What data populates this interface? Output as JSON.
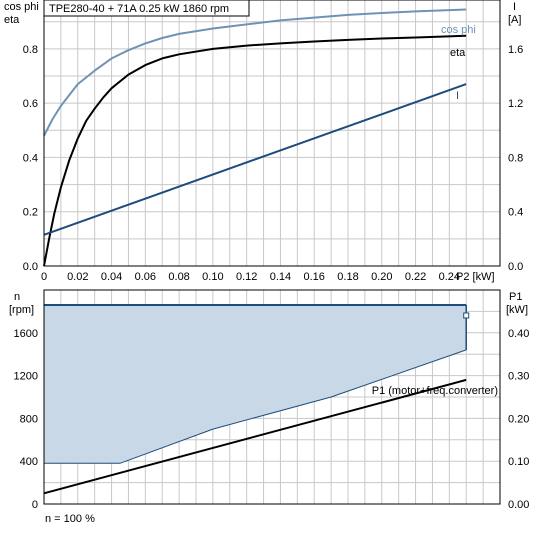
{
  "chart_data": [
    {
      "type": "line",
      "title": "TPE280-40 + 71A   0.25 kW   1860 rpm",
      "left_axis_title": [
        "cos phi",
        "eta"
      ],
      "right_axis_title": [
        "I",
        "[A]"
      ],
      "xlabel": "P2 [kW]",
      "x_ticks": [
        "0",
        "0.02",
        "0.04",
        "0.06",
        "0.08",
        "0.10",
        "0.12",
        "0.14",
        "0.16",
        "0.18",
        "0.20",
        "0.22",
        "0.24"
      ],
      "xlim": [
        0,
        0.27
      ],
      "left_ticks": [
        "0.0",
        "0.2",
        "0.4",
        "0.6",
        "0.8"
      ],
      "left_ylim": [
        0,
        0.98
      ],
      "right_ticks": [
        "0.0",
        "0.4",
        "0.8",
        "1.2",
        "1.6"
      ],
      "right_ylim": [
        0,
        1.96
      ],
      "grid": true,
      "series": [
        {
          "name": "cos phi",
          "axis": "left",
          "color": "#6f93b5",
          "x": [
            0,
            0.005,
            0.01,
            0.015,
            0.02,
            0.03,
            0.04,
            0.05,
            0.06,
            0.07,
            0.08,
            0.1,
            0.12,
            0.14,
            0.16,
            0.18,
            0.2,
            0.22,
            0.25
          ],
          "y": [
            0.48,
            0.54,
            0.59,
            0.63,
            0.67,
            0.72,
            0.765,
            0.795,
            0.82,
            0.84,
            0.855,
            0.875,
            0.89,
            0.905,
            0.915,
            0.925,
            0.932,
            0.938,
            0.945
          ]
        },
        {
          "name": "eta",
          "axis": "left",
          "color": "#000000",
          "x": [
            0,
            0.003,
            0.006,
            0.01,
            0.015,
            0.02,
            0.025,
            0.03,
            0.035,
            0.04,
            0.05,
            0.06,
            0.07,
            0.08,
            0.1,
            0.12,
            0.14,
            0.16,
            0.18,
            0.2,
            0.22,
            0.25
          ],
          "y": [
            0,
            0.1,
            0.19,
            0.29,
            0.39,
            0.47,
            0.535,
            0.58,
            0.62,
            0.655,
            0.705,
            0.74,
            0.765,
            0.78,
            0.8,
            0.812,
            0.82,
            0.827,
            0.833,
            0.838,
            0.842,
            0.848
          ]
        },
        {
          "name": "I",
          "axis": "right",
          "color": "#1d4d7d",
          "x": [
            0,
            0.25
          ],
          "y": [
            0.23,
            1.34
          ]
        }
      ]
    },
    {
      "type": "area",
      "left_axis_title": [
        "n",
        "[rpm]"
      ],
      "right_axis_title": [
        "P1",
        "[kW]"
      ],
      "x_ticks": [],
      "left_ticks": [
        "0",
        "400",
        "800",
        "1200",
        "1600"
      ],
      "left_ylim": [
        0,
        2000
      ],
      "right_ticks": [
        "0.00",
        "0.10",
        "0.20",
        "0.30",
        "0.40"
      ],
      "right_ylim": [
        0,
        0.5
      ],
      "grid": true,
      "footnote": "n = 100 %",
      "operating_area": {
        "axis": "left",
        "fill": "#c9d8e6",
        "stroke": "#1d4d7d",
        "upper": {
          "x": [
            0,
            0.25
          ],
          "y": [
            1860,
            1860
          ]
        },
        "lower": {
          "x": [
            0,
            0.045,
            0.1,
            0.17,
            0.25
          ],
          "y": [
            380,
            380,
            700,
            1000,
            1440
          ]
        }
      },
      "series": [
        {
          "name": "P1 (motor+freq.converter)",
          "axis": "right",
          "color": "#000000",
          "x": [
            0,
            0.25
          ],
          "y": [
            0.025,
            0.29
          ]
        }
      ]
    }
  ]
}
